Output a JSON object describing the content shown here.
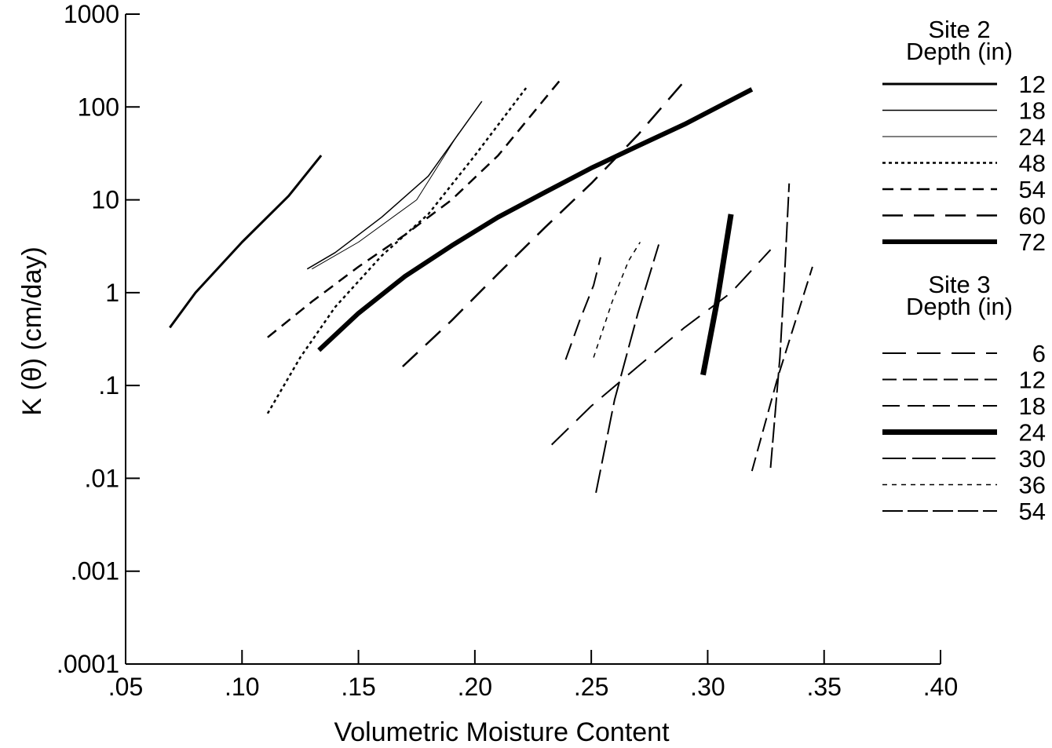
{
  "chart_data": {
    "type": "line",
    "xlabel": "Volumetric Moisture Content",
    "ylabel": "K (θ)  (cm/day)",
    "xlim": [
      0.05,
      0.4
    ],
    "ylim": [
      0.0001,
      1000
    ],
    "y_scale": "log",
    "grid": false,
    "x_ticks": [
      {
        "value": 0.05,
        "label": ".05"
      },
      {
        "value": 0.1,
        "label": ".10"
      },
      {
        "value": 0.15,
        "label": ".15"
      },
      {
        "value": 0.2,
        "label": ".20"
      },
      {
        "value": 0.25,
        "label": ".25"
      },
      {
        "value": 0.3,
        "label": ".30"
      },
      {
        "value": 0.35,
        "label": ".35"
      },
      {
        "value": 0.4,
        "label": ".40"
      }
    ],
    "y_ticks": [
      {
        "value": 1000,
        "label": "1000"
      },
      {
        "value": 100,
        "label": "100"
      },
      {
        "value": 10,
        "label": "10"
      },
      {
        "value": 1,
        "label": "1"
      },
      {
        "value": 0.1,
        "label": ".1"
      },
      {
        "value": 0.01,
        "label": ".01"
      },
      {
        "value": 0.001,
        "label": ".001"
      },
      {
        "value": 0.0001,
        "label": ".0001"
      }
    ],
    "legend_placement": "right",
    "legend_groups": [
      {
        "title_line1": "Site 2",
        "title_line2": "Depth (in)",
        "group": "site2"
      },
      {
        "title_line1": "Site 3",
        "title_line2": "Depth (in)",
        "group": "site3"
      }
    ],
    "series": [
      {
        "name": "12",
        "group": "site2",
        "style": {
          "width": 3,
          "dash": ""
        },
        "points": [
          [
            0.069,
            0.42
          ],
          [
            0.08,
            1.0
          ],
          [
            0.1,
            3.5
          ],
          [
            0.12,
            11
          ],
          [
            0.134,
            30
          ]
        ]
      },
      {
        "name": "18",
        "group": "site2",
        "style": {
          "width": 1.5,
          "dash": ""
        },
        "points": [
          [
            0.128,
            1.8
          ],
          [
            0.14,
            2.7
          ],
          [
            0.16,
            6.5
          ],
          [
            0.18,
            18
          ],
          [
            0.203,
            115
          ]
        ]
      },
      {
        "name": "24",
        "group": "site2",
        "style": {
          "width": 1,
          "dash": ""
        },
        "points": [
          [
            0.13,
            1.8
          ],
          [
            0.15,
            3.5
          ],
          [
            0.175,
            10
          ],
          [
            0.193,
            52
          ]
        ]
      },
      {
        "name": "48",
        "group": "site2",
        "style": {
          "width": 2.5,
          "dash": "4 4"
        },
        "points": [
          [
            0.111,
            0.05
          ],
          [
            0.125,
            0.2
          ],
          [
            0.14,
            0.7
          ],
          [
            0.16,
            2.5
          ],
          [
            0.18,
            7
          ],
          [
            0.2,
            30
          ],
          [
            0.222,
            160
          ]
        ]
      },
      {
        "name": "54",
        "group": "site2",
        "style": {
          "width": 2.5,
          "dash": "14 9"
        },
        "points": [
          [
            0.111,
            0.33
          ],
          [
            0.13,
            0.8
          ],
          [
            0.15,
            1.9
          ],
          [
            0.17,
            4.2
          ],
          [
            0.19,
            10
          ],
          [
            0.21,
            30
          ],
          [
            0.237,
            200
          ]
        ]
      },
      {
        "name": "60",
        "group": "site2",
        "style": {
          "width": 2.5,
          "dash": "26 14"
        },
        "points": [
          [
            0.169,
            0.16
          ],
          [
            0.19,
            0.5
          ],
          [
            0.21,
            1.6
          ],
          [
            0.23,
            5.0
          ],
          [
            0.25,
            15
          ],
          [
            0.27,
            50
          ],
          [
            0.29,
            190
          ]
        ]
      },
      {
        "name": "72",
        "group": "site2",
        "style": {
          "width": 6,
          "dash": ""
        },
        "points": [
          [
            0.133,
            0.24
          ],
          [
            0.15,
            0.6
          ],
          [
            0.17,
            1.5
          ],
          [
            0.19,
            3.2
          ],
          [
            0.21,
            6.5
          ],
          [
            0.23,
            12
          ],
          [
            0.25,
            22
          ],
          [
            0.27,
            38
          ],
          [
            0.29,
            65
          ],
          [
            0.319,
            155
          ]
        ]
      },
      {
        "name": "6",
        "group": "site3",
        "style": {
          "width": 2,
          "dash": "30 14"
        },
        "points": [
          [
            0.233,
            0.023
          ],
          [
            0.25,
            0.06
          ],
          [
            0.27,
            0.16
          ],
          [
            0.29,
            0.42
          ],
          [
            0.31,
            1.0
          ],
          [
            0.327,
            2.9
          ]
        ]
      },
      {
        "name": "12",
        "group": "site3",
        "style": {
          "width": 2,
          "dash": "18 8"
        },
        "points": [
          [
            0.319,
            0.012
          ],
          [
            0.33,
            0.12
          ],
          [
            0.345,
            1.9
          ]
        ]
      },
      {
        "name": "18",
        "group": "site3",
        "style": {
          "width": 2,
          "dash": "22 10"
        },
        "points": [
          [
            0.239,
            0.19
          ],
          [
            0.245,
            0.5
          ],
          [
            0.251,
            1.2
          ],
          [
            0.254,
            2.4
          ]
        ]
      },
      {
        "name": "24",
        "group": "site3",
        "style": {
          "width": 7,
          "dash": ""
        },
        "points": [
          [
            0.298,
            0.13
          ],
          [
            0.304,
            0.8
          ],
          [
            0.31,
            7
          ]
        ]
      },
      {
        "name": "30",
        "group": "site3",
        "style": {
          "width": 2,
          "dash": "30 8"
        },
        "points": [
          [
            0.252,
            0.007
          ],
          [
            0.26,
            0.07
          ],
          [
            0.27,
            0.6
          ],
          [
            0.279,
            3.3
          ]
        ]
      },
      {
        "name": "36",
        "group": "site3",
        "style": {
          "width": 1.5,
          "dash": "6 6"
        },
        "points": [
          [
            0.251,
            0.2
          ],
          [
            0.259,
            0.8
          ],
          [
            0.266,
            2.2
          ],
          [
            0.271,
            3.5
          ]
        ]
      },
      {
        "name": "54",
        "group": "site3",
        "style": {
          "width": 2,
          "dash": "26 6"
        },
        "points": [
          [
            0.327,
            0.013
          ],
          [
            0.331,
            0.2
          ],
          [
            0.333,
            1.5
          ],
          [
            0.335,
            15
          ]
        ]
      }
    ]
  }
}
